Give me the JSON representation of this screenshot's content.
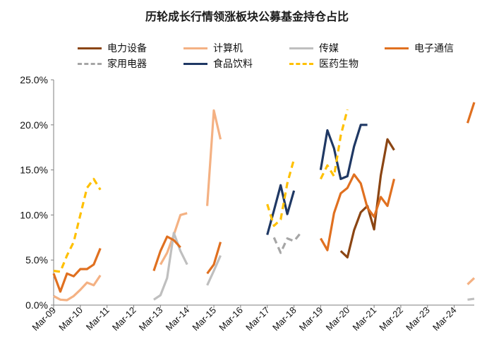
{
  "chart_data": {
    "type": "line",
    "title": "历轮成长行情领涨板块公募基金持仓占比",
    "xlabel": "",
    "ylabel": "",
    "ylim": [
      0,
      25
    ],
    "y_ticks": [
      "0.0%",
      "5.0%",
      "10.0%",
      "15.0%",
      "20.0%",
      "25.0%"
    ],
    "x_ticks": [
      "Mar-09",
      "Mar-10",
      "Mar-11",
      "Mar-12",
      "Mar-13",
      "Mar-14",
      "Mar-15",
      "Mar-16",
      "Mar-17",
      "Mar-18",
      "Mar-19",
      "Mar-20",
      "Mar-21",
      "Mar-22",
      "Mar-23",
      "Mar-24"
    ],
    "x_start": "2009-03",
    "x_end": "2024-12",
    "legend_position": "top",
    "grid": false,
    "series": [
      {
        "name": "电力设备",
        "color": "#8B4513",
        "dash": "solid",
        "segments": [
          [
            [
              "2019-12",
              6.0
            ],
            [
              "2020-03",
              5.3
            ],
            [
              "2020-06",
              8.3
            ],
            [
              "2020-09",
              10.3
            ],
            [
              "2020-12",
              11.0
            ],
            [
              "2021-03",
              8.4
            ],
            [
              "2021-06",
              14.4
            ],
            [
              "2021-09",
              18.4
            ],
            [
              "2021-12",
              17.2
            ]
          ]
        ]
      },
      {
        "name": "计算机",
        "color": "#F4B183",
        "dash": "solid",
        "segments": [
          [
            [
              "2009-03",
              1.0
            ],
            [
              "2009-06",
              0.6
            ],
            [
              "2009-09",
              0.55
            ],
            [
              "2009-12",
              1.0
            ],
            [
              "2010-03",
              1.7
            ],
            [
              "2010-06",
              2.5
            ],
            [
              "2010-09",
              2.2
            ],
            [
              "2010-12",
              3.3
            ]
          ],
          [
            [
              "2013-03",
              4.5
            ],
            [
              "2013-06",
              5.8
            ],
            [
              "2013-09",
              7.8
            ],
            [
              "2013-12",
              10.0
            ],
            [
              "2014-03",
              10.2
            ]
          ],
          [
            [
              "2014-12",
              11.0
            ],
            [
              "2015-03",
              21.6
            ],
            [
              "2015-06",
              18.4
            ]
          ],
          [
            [
              "2024-09",
              2.3
            ],
            [
              "2024-12",
              3.0
            ]
          ]
        ]
      },
      {
        "name": "传媒",
        "color": "#BFBFBF",
        "dash": "solid",
        "segments": [
          [
            [
              "2012-12",
              0.6
            ],
            [
              "2013-03",
              1.1
            ],
            [
              "2013-06",
              3.0
            ],
            [
              "2013-09",
              8.0
            ],
            [
              "2013-12",
              6.0
            ],
            [
              "2014-03",
              4.5
            ]
          ],
          [
            [
              "2014-12",
              2.2
            ],
            [
              "2015-03",
              3.8
            ],
            [
              "2015-06",
              5.5
            ]
          ],
          [
            [
              "2024-09",
              0.6
            ],
            [
              "2024-12",
              0.7
            ]
          ]
        ]
      },
      {
        "name": "电子通信",
        "color": "#E07020",
        "dash": "solid",
        "segments": [
          [
            [
              "2009-03",
              3.5
            ],
            [
              "2009-06",
              1.5
            ],
            [
              "2009-09",
              3.5
            ],
            [
              "2009-12",
              3.2
            ],
            [
              "2010-03",
              4.0
            ],
            [
              "2010-06",
              4.0
            ],
            [
              "2010-09",
              4.5
            ],
            [
              "2010-12",
              6.3
            ]
          ],
          [
            [
              "2012-12",
              3.8
            ],
            [
              "2013-03",
              6.0
            ],
            [
              "2013-06",
              7.6
            ],
            [
              "2013-09",
              7.2
            ],
            [
              "2013-12",
              6.4
            ]
          ],
          [
            [
              "2014-12",
              3.5
            ],
            [
              "2015-03",
              4.5
            ],
            [
              "2015-06",
              7.0
            ]
          ],
          [
            [
              "2019-03",
              7.4
            ],
            [
              "2019-06",
              6.1
            ],
            [
              "2019-09",
              10.2
            ],
            [
              "2019-12",
              12.4
            ],
            [
              "2020-03",
              13.0
            ],
            [
              "2020-06",
              14.5
            ],
            [
              "2020-09",
              13.5
            ],
            [
              "2020-12",
              10.8
            ],
            [
              "2021-03",
              9.8
            ],
            [
              "2021-06",
              12.0
            ],
            [
              "2021-09",
              11.0
            ],
            [
              "2021-12",
              14.0
            ]
          ],
          [
            [
              "2024-09",
              20.2
            ],
            [
              "2024-12",
              22.5
            ]
          ]
        ]
      },
      {
        "name": "家用电器",
        "color": "#A6A6A6",
        "dash": "dashed",
        "segments": [
          [
            [
              "2017-06",
              7.5
            ],
            [
              "2017-09",
              5.8
            ],
            [
              "2017-12",
              7.4
            ],
            [
              "2018-03",
              7.1
            ],
            [
              "2018-06",
              8.0
            ]
          ]
        ]
      },
      {
        "name": "食品饮料",
        "color": "#1F3864",
        "dash": "solid",
        "segments": [
          [
            [
              "2017-03",
              7.8
            ],
            [
              "2017-06",
              10.5
            ],
            [
              "2017-09",
              13.3
            ],
            [
              "2017-12",
              10.1
            ],
            [
              "2018-03",
              12.7
            ]
          ],
          [
            [
              "2019-03",
              15.0
            ],
            [
              "2019-06",
              19.4
            ],
            [
              "2019-09",
              17.4
            ],
            [
              "2019-12",
              14.0
            ],
            [
              "2020-03",
              14.3
            ],
            [
              "2020-06",
              17.6
            ],
            [
              "2020-09",
              20.0
            ],
            [
              "2020-12",
              20.0
            ]
          ]
        ]
      },
      {
        "name": "医药生物",
        "color": "#FFC000",
        "dash": "dashed",
        "segments": [
          [
            [
              "2009-03",
              3.8
            ],
            [
              "2009-06",
              3.7
            ],
            [
              "2009-09",
              5.5
            ],
            [
              "2009-12",
              7.0
            ],
            [
              "2010-03",
              10.0
            ],
            [
              "2010-06",
              13.0
            ],
            [
              "2010-09",
              14.0
            ],
            [
              "2010-12",
              12.8
            ]
          ],
          [
            [
              "2017-03",
              11.2
            ],
            [
              "2017-06",
              8.8
            ],
            [
              "2017-09",
              9.5
            ],
            [
              "2017-12",
              13.5
            ],
            [
              "2018-03",
              16.2
            ]
          ],
          [
            [
              "2019-03",
              14.0
            ],
            [
              "2019-06",
              15.5
            ],
            [
              "2019-09",
              14.3
            ],
            [
              "2019-12",
              18.8
            ],
            [
              "2020-03",
              21.7
            ]
          ]
        ]
      }
    ]
  }
}
